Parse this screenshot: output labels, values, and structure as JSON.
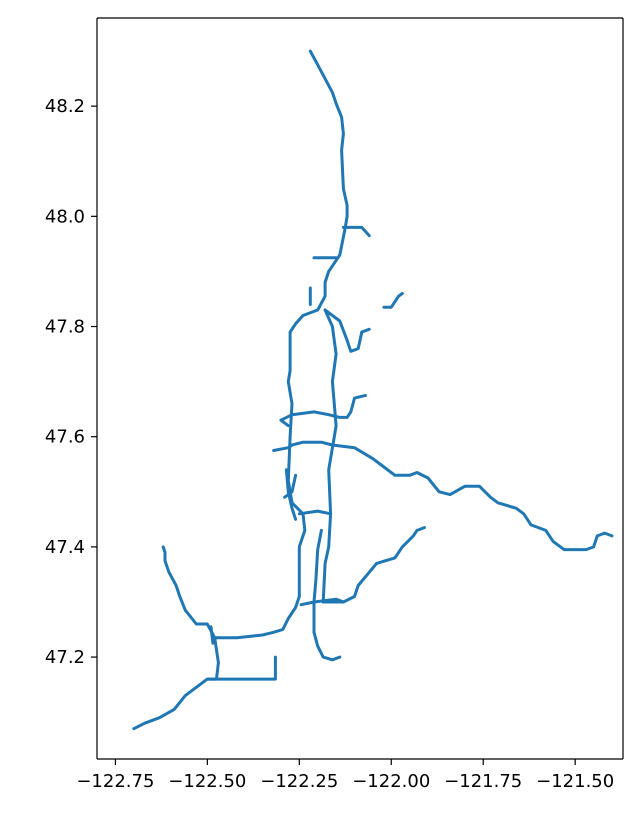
{
  "chart_data": {
    "type": "line",
    "title": "",
    "xlabel": "",
    "ylabel": "",
    "xlim": [
      -122.8,
      -121.37
    ],
    "ylim": [
      47.015,
      48.36
    ],
    "grid": false,
    "color": "#1f77b4",
    "x_ticks": [
      {
        "value": -122.75,
        "label": "−122.75"
      },
      {
        "value": -122.5,
        "label": "−122.50"
      },
      {
        "value": -122.25,
        "label": "−122.25"
      },
      {
        "value": -122.0,
        "label": "−122.00"
      },
      {
        "value": -121.75,
        "label": "−121.75"
      },
      {
        "value": -121.5,
        "label": "−121.50"
      }
    ],
    "y_ticks": [
      {
        "value": 47.2,
        "label": "47.2"
      },
      {
        "value": 47.4,
        "label": "47.4"
      },
      {
        "value": 47.6,
        "label": "47.6"
      },
      {
        "value": 47.8,
        "label": "47.8"
      },
      {
        "value": 48.0,
        "label": "48.0"
      },
      {
        "value": 48.2,
        "label": "48.2"
      }
    ],
    "series": [
      {
        "points": [
          [
            -122.22,
            48.3
          ],
          [
            -122.2,
            48.275
          ],
          [
            -122.16,
            48.225
          ],
          [
            -122.15,
            48.205
          ],
          [
            -122.135,
            48.18
          ],
          [
            -122.13,
            48.15
          ],
          [
            -122.135,
            48.12
          ],
          [
            -122.13,
            48.05
          ],
          [
            -122.12,
            48.02
          ],
          [
            -122.12,
            48.0
          ],
          [
            -122.125,
            47.98
          ],
          [
            -122.14,
            47.93
          ],
          [
            -122.17,
            47.9
          ],
          [
            -122.18,
            47.88
          ],
          [
            -122.18,
            47.855
          ],
          [
            -122.2,
            47.83
          ],
          [
            -122.24,
            47.82
          ],
          [
            -122.26,
            47.805
          ],
          [
            -122.275,
            47.79
          ],
          [
            -122.275,
            47.72
          ],
          [
            -122.28,
            47.7
          ],
          [
            -122.27,
            47.66
          ],
          [
            -122.275,
            47.6
          ],
          [
            -122.28,
            47.52
          ],
          [
            -122.27,
            47.48
          ],
          [
            -122.24,
            47.46
          ],
          [
            -122.235,
            47.43
          ],
          [
            -122.25,
            47.4
          ],
          [
            -122.25,
            47.31
          ],
          [
            -122.26,
            47.29
          ],
          [
            -122.28,
            47.27
          ],
          [
            -122.295,
            47.25
          ],
          [
            -122.32,
            47.245
          ],
          [
            -122.35,
            47.24
          ],
          [
            -122.42,
            47.235
          ],
          [
            -122.44,
            47.235
          ],
          [
            -122.47,
            47.235
          ],
          [
            -122.48,
            47.235
          ],
          [
            -122.5,
            47.26
          ],
          [
            -122.53,
            47.26
          ],
          [
            -122.56,
            47.285
          ],
          [
            -122.575,
            47.31
          ],
          [
            -122.585,
            47.33
          ],
          [
            -122.605,
            47.355
          ],
          [
            -122.615,
            47.375
          ],
          [
            -122.615,
            47.39
          ],
          [
            -122.62,
            47.4
          ]
        ]
      },
      {
        "points": [
          [
            -122.13,
            47.98
          ],
          [
            -122.08,
            47.98
          ],
          [
            -122.06,
            47.965
          ]
        ]
      },
      {
        "points": [
          [
            -122.15,
            47.925
          ],
          [
            -122.21,
            47.925
          ]
        ]
      },
      {
        "points": [
          [
            -122.22,
            47.87
          ],
          [
            -122.22,
            47.84
          ]
        ]
      },
      {
        "points": [
          [
            -122.18,
            47.83
          ],
          [
            -122.14,
            47.81
          ],
          [
            -122.12,
            47.775
          ],
          [
            -122.11,
            47.755
          ],
          [
            -122.09,
            47.76
          ],
          [
            -122.08,
            47.79
          ],
          [
            -122.06,
            47.795
          ]
        ]
      },
      {
        "points": [
          [
            -122.18,
            47.83
          ],
          [
            -122.16,
            47.8
          ],
          [
            -122.15,
            47.75
          ],
          [
            -122.16,
            47.7
          ],
          [
            -122.15,
            47.62
          ],
          [
            -122.155,
            47.6
          ],
          [
            -122.17,
            47.54
          ],
          [
            -122.165,
            47.46
          ],
          [
            -122.17,
            47.4
          ],
          [
            -122.18,
            47.37
          ],
          [
            -122.185,
            47.3
          ]
        ]
      },
      {
        "points": [
          [
            -122.02,
            47.835
          ],
          [
            -122.0,
            47.835
          ],
          [
            -121.99,
            47.845
          ],
          [
            -121.98,
            47.855
          ],
          [
            -121.97,
            47.86
          ]
        ]
      },
      {
        "points": [
          [
            -122.07,
            47.675
          ],
          [
            -122.1,
            47.67
          ],
          [
            -122.11,
            47.645
          ],
          [
            -122.12,
            47.635
          ],
          [
            -122.14,
            47.635
          ],
          [
            -122.17,
            47.64
          ],
          [
            -122.21,
            47.645
          ],
          [
            -122.27,
            47.64
          ],
          [
            -122.3,
            47.63
          ],
          [
            -122.28,
            47.62
          ]
        ]
      },
      {
        "points": [
          [
            -122.32,
            47.575
          ],
          [
            -122.28,
            47.58
          ],
          [
            -122.27,
            47.585
          ],
          [
            -122.24,
            47.59
          ],
          [
            -122.19,
            47.59
          ],
          [
            -122.16,
            47.585
          ],
          [
            -122.1,
            47.58
          ],
          [
            -122.05,
            47.56
          ],
          [
            -122.02,
            47.545
          ],
          [
            -121.99,
            47.53
          ],
          [
            -121.95,
            47.53
          ],
          [
            -121.93,
            47.535
          ],
          [
            -121.9,
            47.525
          ],
          [
            -121.87,
            47.5
          ],
          [
            -121.84,
            47.495
          ],
          [
            -121.8,
            47.51
          ],
          [
            -121.76,
            47.51
          ],
          [
            -121.73,
            47.49
          ],
          [
            -121.71,
            47.48
          ],
          [
            -121.66,
            47.47
          ],
          [
            -121.64,
            47.46
          ],
          [
            -121.62,
            47.44
          ],
          [
            -121.58,
            47.43
          ],
          [
            -121.56,
            47.41
          ],
          [
            -121.53,
            47.395
          ],
          [
            -121.47,
            47.395
          ],
          [
            -121.45,
            47.4
          ],
          [
            -121.44,
            47.42
          ],
          [
            -121.42,
            47.425
          ],
          [
            -121.4,
            47.42
          ]
        ]
      },
      {
        "points": [
          [
            -122.285,
            47.54
          ],
          [
            -122.28,
            47.5
          ],
          [
            -122.27,
            47.47
          ],
          [
            -122.26,
            47.45
          ]
        ]
      },
      {
        "points": [
          [
            -122.29,
            47.49
          ],
          [
            -122.27,
            47.5
          ],
          [
            -122.26,
            47.53
          ]
        ]
      },
      {
        "points": [
          [
            -122.25,
            47.46
          ],
          [
            -122.2,
            47.465
          ],
          [
            -122.165,
            47.46
          ]
        ]
      },
      {
        "points": [
          [
            -122.19,
            47.43
          ],
          [
            -122.2,
            47.395
          ],
          [
            -122.205,
            47.34
          ],
          [
            -122.21,
            47.3
          ],
          [
            -122.21,
            47.245
          ],
          [
            -122.2,
            47.22
          ],
          [
            -122.185,
            47.2
          ],
          [
            -122.16,
            47.195
          ],
          [
            -122.14,
            47.2
          ]
        ]
      },
      {
        "points": [
          [
            -122.185,
            47.3
          ],
          [
            -122.13,
            47.3
          ],
          [
            -122.1,
            47.31
          ],
          [
            -122.09,
            47.33
          ],
          [
            -122.04,
            47.37
          ],
          [
            -121.99,
            47.38
          ],
          [
            -121.97,
            47.4
          ],
          [
            -121.94,
            47.42
          ],
          [
            -121.93,
            47.43
          ],
          [
            -121.91,
            47.435
          ]
        ]
      },
      {
        "points": [
          [
            -122.13,
            47.3
          ],
          [
            -122.15,
            47.305
          ],
          [
            -122.21,
            47.3
          ],
          [
            -122.245,
            47.295
          ]
        ]
      },
      {
        "points": [
          [
            -122.48,
            47.235
          ],
          [
            -122.47,
            47.19
          ],
          [
            -122.475,
            47.16
          ],
          [
            -122.5,
            47.16
          ],
          [
            -122.56,
            47.13
          ],
          [
            -122.59,
            47.105
          ],
          [
            -122.63,
            47.09
          ],
          [
            -122.67,
            47.08
          ],
          [
            -122.7,
            47.07
          ]
        ]
      },
      {
        "points": [
          [
            -122.5,
            47.16
          ],
          [
            -122.44,
            47.16
          ],
          [
            -122.36,
            47.16
          ],
          [
            -122.315,
            47.16
          ],
          [
            -122.315,
            47.2
          ]
        ]
      },
      {
        "points": [
          [
            -122.49,
            47.255
          ],
          [
            -122.485,
            47.225
          ]
        ]
      }
    ]
  }
}
